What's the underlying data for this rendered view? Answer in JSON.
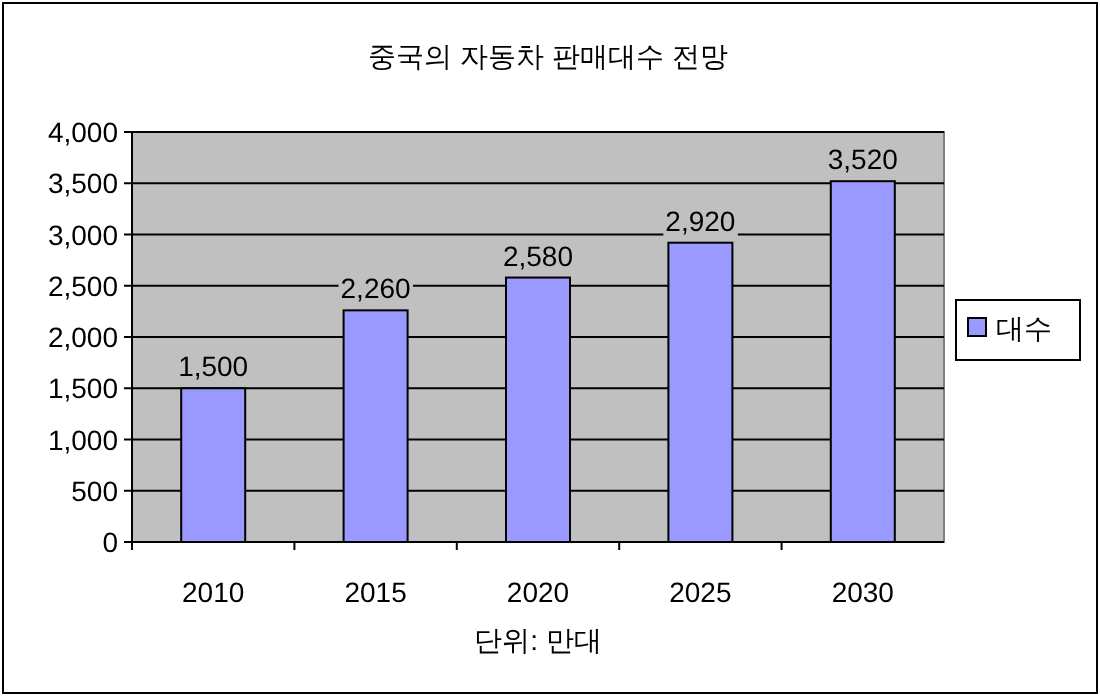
{
  "chart_data": {
    "type": "bar",
    "title": "중국의 자동차 판매대수 전망",
    "xlabel": "단위: 만대",
    "categories": [
      "2010",
      "2015",
      "2020",
      "2025",
      "2030"
    ],
    "series": [
      {
        "name": "대수",
        "color": "#9999ff",
        "values": [
          1500,
          2260,
          2580,
          2920,
          3520
        ],
        "value_labels": [
          "1,500",
          "2,260",
          "2,580",
          "2,920",
          "3,520"
        ]
      }
    ],
    "ylim": [
      0,
      4000
    ],
    "yticks": [
      {
        "value": 0,
        "label": "0"
      },
      {
        "value": 500,
        "label": "500"
      },
      {
        "value": 1000,
        "label": "1,000"
      },
      {
        "value": 1500,
        "label": "1,500"
      },
      {
        "value": 2000,
        "label": "2,000"
      },
      {
        "value": 2500,
        "label": "2,500"
      },
      {
        "value": 3000,
        "label": "3,000"
      },
      {
        "value": 3500,
        "label": "3,500"
      },
      {
        "value": 4000,
        "label": "4,000"
      }
    ],
    "grid": "y",
    "legend": "right"
  }
}
